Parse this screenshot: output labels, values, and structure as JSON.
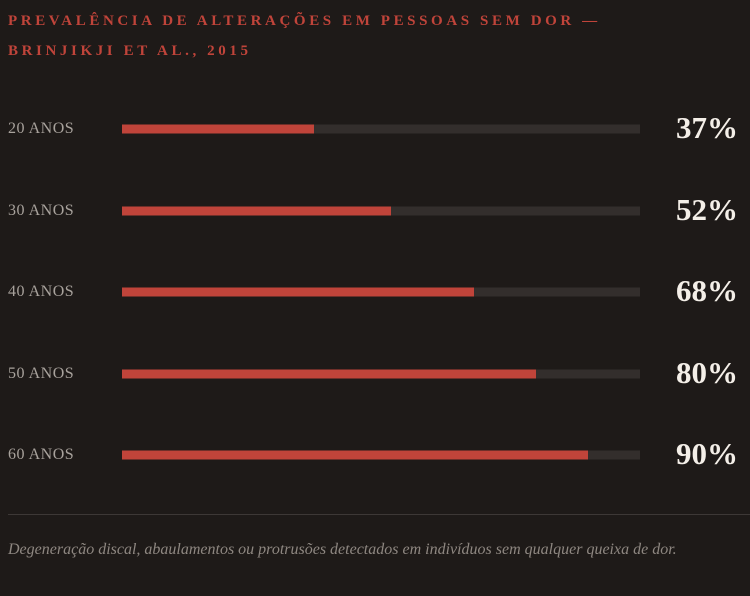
{
  "chart_data": {
    "type": "bar",
    "orientation": "horizontal",
    "title": "PREVALÊNCIA DE ALTERAÇÕES EM PESSOAS SEM DOR — BRINJIKJI ET AL., 2015",
    "categories": [
      "20 ANOS",
      "30 ANOS",
      "40 ANOS",
      "50 ANOS",
      "60 ANOS"
    ],
    "values": [
      37,
      52,
      68,
      80,
      90
    ],
    "value_labels": [
      "37%",
      "52%",
      "68%",
      "80%",
      "90%"
    ],
    "xlim": [
      0,
      100
    ],
    "color": "#c0443a",
    "caption": "Degeneração discal, abaulamentos ou protrusões detectados em indivíduos sem qualquer queixa de dor."
  }
}
